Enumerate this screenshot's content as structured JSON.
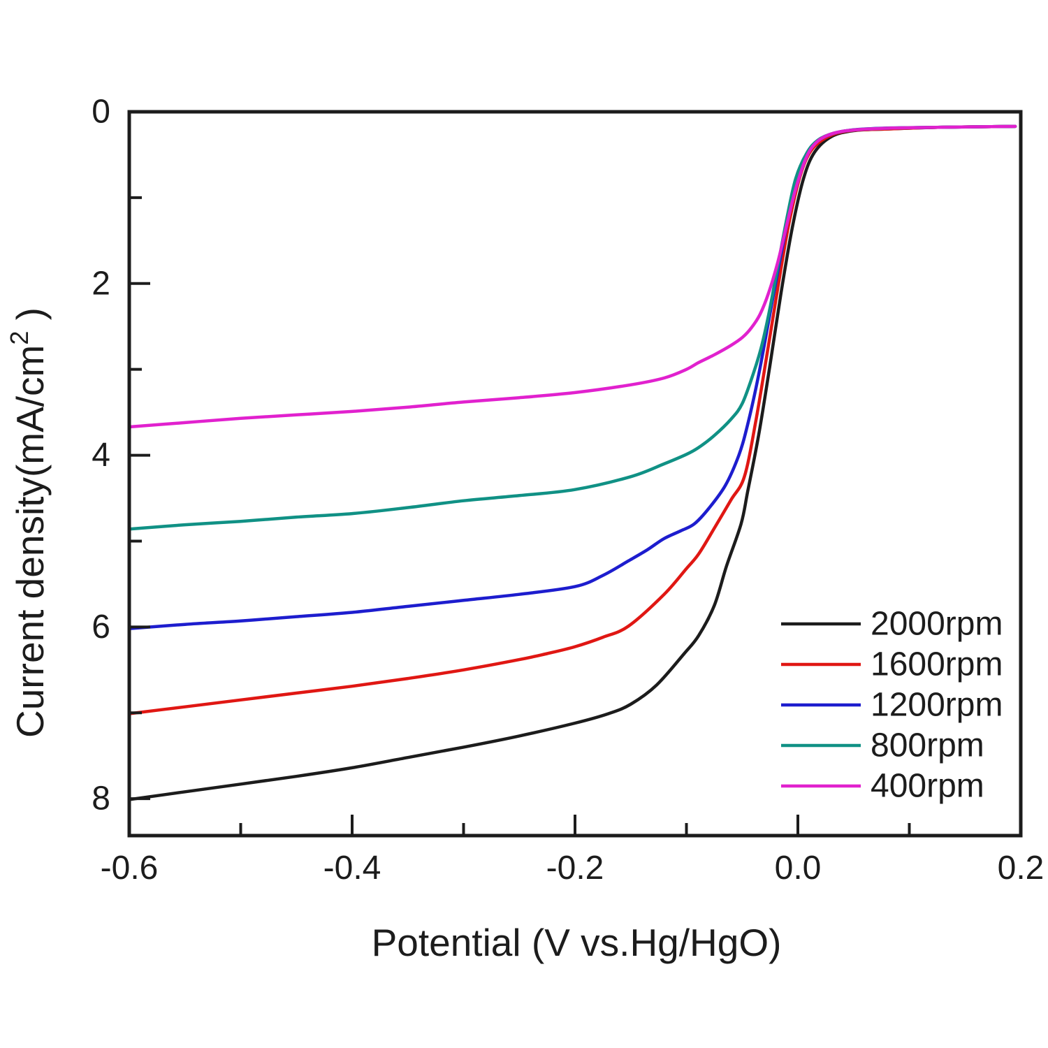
{
  "figure": {
    "background": "#ffffff",
    "text_color": "#1c1c1c",
    "frame_color": "#1c1c1c"
  },
  "chart_data": {
    "type": "line",
    "title": "",
    "xlabel": "Potential (V vs.Hg/HgO)",
    "ylabel": {
      "pre": "Current density(mA/cm",
      "sup": "2",
      "post": " )"
    },
    "xlim": [
      -0.6,
      0.2
    ],
    "ylim": [
      0,
      8.43
    ],
    "y_orientation": "values increase downward",
    "grid": false,
    "legend_position": "inside lower right",
    "x_major_ticks": [
      {
        "value": -0.6,
        "label": "-0.6"
      },
      {
        "value": -0.4,
        "label": "-0.4"
      },
      {
        "value": -0.2,
        "label": "-0.2"
      },
      {
        "value": 0.0,
        "label": "0.0"
      },
      {
        "value": 0.2,
        "label": "0.2"
      }
    ],
    "x_minor_ticks": [
      -0.5,
      -0.3,
      -0.1,
      0.1
    ],
    "y_major_ticks": [
      {
        "value": 0,
        "label": "0"
      },
      {
        "value": 2,
        "label": "2"
      },
      {
        "value": 4,
        "label": "4"
      },
      {
        "value": 6,
        "label": "6"
      },
      {
        "value": 8,
        "label": "8"
      }
    ],
    "y_minor_ticks": [
      1,
      3,
      5,
      7
    ],
    "series": [
      {
        "name": "2000rpm",
        "color": "#1c1c1c",
        "limiting_current_at_-0.6V": 8.0,
        "points": [
          [
            -0.6,
            8.01
          ],
          [
            -0.55,
            7.92
          ],
          [
            -0.5,
            7.83
          ],
          [
            -0.45,
            7.74
          ],
          [
            -0.4,
            7.64
          ],
          [
            -0.35,
            7.52
          ],
          [
            -0.3,
            7.4
          ],
          [
            -0.25,
            7.27
          ],
          [
            -0.2,
            7.12
          ],
          [
            -0.17,
            7.01
          ],
          [
            -0.15,
            6.9
          ],
          [
            -0.127,
            6.68
          ],
          [
            -0.102,
            6.31
          ],
          [
            -0.089,
            6.1
          ],
          [
            -0.075,
            5.75
          ],
          [
            -0.064,
            5.29
          ],
          [
            -0.051,
            4.8
          ],
          [
            -0.045,
            4.42
          ],
          [
            -0.035,
            3.75
          ],
          [
            -0.025,
            2.95
          ],
          [
            -0.015,
            2.1
          ],
          [
            -0.005,
            1.35
          ],
          [
            0.005,
            0.78
          ],
          [
            0.015,
            0.47
          ],
          [
            0.03,
            0.29
          ],
          [
            0.05,
            0.22
          ],
          [
            0.08,
            0.2
          ],
          [
            0.13,
            0.18
          ],
          [
            0.195,
            0.17
          ]
        ]
      },
      {
        "name": "1600rpm",
        "color": "#e01713",
        "limiting_current_at_-0.6V": 7.0,
        "points": [
          [
            -0.6,
            7.01
          ],
          [
            -0.55,
            6.93
          ],
          [
            -0.5,
            6.85
          ],
          [
            -0.45,
            6.77
          ],
          [
            -0.4,
            6.69
          ],
          [
            -0.35,
            6.6
          ],
          [
            -0.3,
            6.5
          ],
          [
            -0.25,
            6.38
          ],
          [
            -0.225,
            6.31
          ],
          [
            -0.2,
            6.23
          ],
          [
            -0.175,
            6.12
          ],
          [
            -0.152,
            5.99
          ],
          [
            -0.12,
            5.62
          ],
          [
            -0.1,
            5.32
          ],
          [
            -0.089,
            5.15
          ],
          [
            -0.075,
            4.85
          ],
          [
            -0.06,
            4.52
          ],
          [
            -0.048,
            4.25
          ],
          [
            -0.038,
            3.62
          ],
          [
            -0.028,
            2.85
          ],
          [
            -0.018,
            2.05
          ],
          [
            -0.008,
            1.3
          ],
          [
            0.002,
            0.75
          ],
          [
            0.012,
            0.45
          ],
          [
            0.027,
            0.29
          ],
          [
            0.047,
            0.22
          ],
          [
            0.08,
            0.2
          ],
          [
            0.13,
            0.18
          ],
          [
            0.195,
            0.17
          ]
        ]
      },
      {
        "name": "1200rpm",
        "color": "#1d1dce",
        "limiting_current_at_-0.6V": 6.0,
        "points": [
          [
            -0.6,
            6.02
          ],
          [
            -0.55,
            5.97
          ],
          [
            -0.5,
            5.93
          ],
          [
            -0.45,
            5.88
          ],
          [
            -0.4,
            5.83
          ],
          [
            -0.35,
            5.76
          ],
          [
            -0.3,
            5.69
          ],
          [
            -0.25,
            5.62
          ],
          [
            -0.2,
            5.53
          ],
          [
            -0.175,
            5.4
          ],
          [
            -0.152,
            5.23
          ],
          [
            -0.135,
            5.1
          ],
          [
            -0.12,
            4.97
          ],
          [
            -0.105,
            4.88
          ],
          [
            -0.093,
            4.8
          ],
          [
            -0.08,
            4.62
          ],
          [
            -0.065,
            4.35
          ],
          [
            -0.053,
            4.0
          ],
          [
            -0.045,
            3.64
          ],
          [
            -0.035,
            3.05
          ],
          [
            -0.025,
            2.35
          ],
          [
            -0.015,
            1.65
          ],
          [
            -0.005,
            1.02
          ],
          [
            0.005,
            0.58
          ],
          [
            0.015,
            0.37
          ],
          [
            0.03,
            0.26
          ],
          [
            0.05,
            0.21
          ],
          [
            0.08,
            0.19
          ],
          [
            0.13,
            0.18
          ],
          [
            0.195,
            0.17
          ]
        ]
      },
      {
        "name": "800rpm",
        "color": "#109185",
        "limiting_current_at_-0.6V": 4.86,
        "points": [
          [
            -0.6,
            4.86
          ],
          [
            -0.55,
            4.81
          ],
          [
            -0.5,
            4.77
          ],
          [
            -0.45,
            4.72
          ],
          [
            -0.4,
            4.68
          ],
          [
            -0.35,
            4.61
          ],
          [
            -0.3,
            4.53
          ],
          [
            -0.25,
            4.47
          ],
          [
            -0.2,
            4.4
          ],
          [
            -0.15,
            4.25
          ],
          [
            -0.12,
            4.1
          ],
          [
            -0.1,
            3.99
          ],
          [
            -0.089,
            3.91
          ],
          [
            -0.075,
            3.77
          ],
          [
            -0.06,
            3.58
          ],
          [
            -0.05,
            3.4
          ],
          [
            -0.04,
            3.05
          ],
          [
            -0.033,
            2.75
          ],
          [
            -0.026,
            2.35
          ],
          [
            -0.018,
            1.8
          ],
          [
            -0.01,
            1.25
          ],
          [
            -0.002,
            0.78
          ],
          [
            0.008,
            0.48
          ],
          [
            0.018,
            0.33
          ],
          [
            0.032,
            0.25
          ],
          [
            0.052,
            0.21
          ],
          [
            0.085,
            0.19
          ],
          [
            0.13,
            0.18
          ],
          [
            0.195,
            0.17
          ]
        ]
      },
      {
        "name": "400rpm",
        "color": "#e121ce",
        "limiting_current_at_-0.6V": 3.67,
        "points": [
          [
            -0.6,
            3.67
          ],
          [
            -0.55,
            3.62
          ],
          [
            -0.5,
            3.57
          ],
          [
            -0.45,
            3.53
          ],
          [
            -0.4,
            3.49
          ],
          [
            -0.35,
            3.44
          ],
          [
            -0.3,
            3.38
          ],
          [
            -0.25,
            3.33
          ],
          [
            -0.2,
            3.27
          ],
          [
            -0.15,
            3.18
          ],
          [
            -0.12,
            3.1
          ],
          [
            -0.1,
            3.0
          ],
          [
            -0.089,
            2.92
          ],
          [
            -0.075,
            2.83
          ],
          [
            -0.06,
            2.72
          ],
          [
            -0.05,
            2.63
          ],
          [
            -0.042,
            2.52
          ],
          [
            -0.034,
            2.36
          ],
          [
            -0.026,
            2.1
          ],
          [
            -0.018,
            1.75
          ],
          [
            -0.01,
            1.32
          ],
          [
            -0.002,
            0.9
          ],
          [
            0.008,
            0.52
          ],
          [
            0.018,
            0.34
          ],
          [
            0.032,
            0.25
          ],
          [
            0.052,
            0.21
          ],
          [
            0.085,
            0.19
          ],
          [
            0.13,
            0.18
          ],
          [
            0.195,
            0.17
          ]
        ]
      }
    ],
    "legend": [
      {
        "label": "2000rpm",
        "color": "#1c1c1c"
      },
      {
        "label": "1600rpm",
        "color": "#e01713"
      },
      {
        "label": "1200rpm",
        "color": "#1d1dce"
      },
      {
        "label": "800rpm",
        "color": "#109185"
      },
      {
        "label": "400rpm",
        "color": "#e121ce"
      }
    ]
  }
}
